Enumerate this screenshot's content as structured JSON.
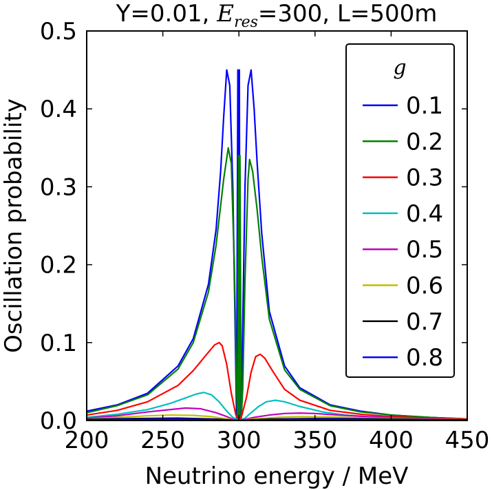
{
  "chart_data": {
    "type": "line",
    "title_prefix": "Y=0.01, ",
    "title_symbol": "E",
    "title_subscript": "res",
    "title_suffix": "=300, L=500m",
    "xlabel": "Neutrino energy / MeV",
    "ylabel": "Oscillation probability",
    "xlim": [
      200,
      450
    ],
    "ylim": [
      0.0,
      0.5
    ],
    "x_ticks": [
      200,
      250,
      300,
      350,
      400,
      450
    ],
    "x_tick_labels": [
      "200",
      "250",
      "300",
      "350",
      "400",
      "450"
    ],
    "y_ticks": [
      0.0,
      0.1,
      0.2,
      0.3,
      0.4,
      0.5
    ],
    "y_tick_labels": [
      "0.0",
      "0.1",
      "0.2",
      "0.3",
      "0.4",
      "0.5"
    ],
    "grid": false,
    "legend_title": "g",
    "legend_position": "top-right",
    "series": [
      {
        "name": "0.1",
        "color": "#0000ff",
        "x": [
          200,
          220,
          240,
          260,
          270,
          280,
          285,
          288,
          290,
          292,
          294,
          296,
          297.5,
          298.5,
          299.3,
          299.7,
          300,
          300.3,
          300.7,
          301.5,
          302.5,
          304,
          306,
          308,
          310,
          312,
          315,
          320,
          330,
          340,
          360,
          380,
          400,
          425,
          450
        ],
        "y": [
          0.012,
          0.02,
          0.035,
          0.07,
          0.105,
          0.175,
          0.245,
          0.32,
          0.39,
          0.45,
          0.43,
          0.3,
          0.12,
          0.0,
          0.45,
          0.0,
          0.0,
          0.45,
          0.0,
          0.0,
          0.12,
          0.3,
          0.43,
          0.45,
          0.4,
          0.33,
          0.24,
          0.14,
          0.07,
          0.042,
          0.02,
          0.012,
          0.007,
          0.004,
          0.002
        ]
      },
      {
        "name": "0.2",
        "color": "#008000",
        "x": [
          200,
          220,
          240,
          260,
          270,
          280,
          285,
          290,
          293,
          295,
          297,
          298.5,
          299.3,
          299.7,
          300,
          300.3,
          300.7,
          301.5,
          302.5,
          304,
          306,
          307,
          309,
          312,
          315,
          320,
          330,
          340,
          360,
          380,
          400,
          425,
          450
        ],
        "y": [
          0.01,
          0.019,
          0.033,
          0.066,
          0.1,
          0.165,
          0.225,
          0.31,
          0.35,
          0.33,
          0.2,
          0.04,
          0.0,
          0.34,
          0.0,
          0.0,
          0.34,
          0.0,
          0.04,
          0.18,
          0.31,
          0.335,
          0.32,
          0.27,
          0.21,
          0.13,
          0.065,
          0.04,
          0.019,
          0.011,
          0.007,
          0.004,
          0.002
        ]
      },
      {
        "name": "0.3",
        "color": "#ff0000",
        "x": [
          200,
          220,
          240,
          260,
          270,
          278,
          284,
          287,
          289,
          292,
          295,
          298,
          300,
          302,
          305,
          308,
          311,
          314,
          317,
          322,
          330,
          340,
          360,
          380,
          400,
          425,
          450
        ],
        "y": [
          0.007,
          0.013,
          0.024,
          0.045,
          0.064,
          0.083,
          0.097,
          0.1,
          0.096,
          0.072,
          0.035,
          0.007,
          0.0,
          0.007,
          0.03,
          0.062,
          0.082,
          0.085,
          0.08,
          0.064,
          0.04,
          0.026,
          0.013,
          0.008,
          0.005,
          0.003,
          0.002
        ]
      },
      {
        "name": "0.4",
        "color": "#00bfbf",
        "x": [
          200,
          220,
          240,
          255,
          265,
          272,
          277,
          282,
          287,
          292,
          296,
          300,
          304,
          308,
          313,
          318,
          324,
          330,
          340,
          355,
          370,
          390,
          410,
          430,
          450
        ],
        "y": [
          0.004,
          0.008,
          0.014,
          0.022,
          0.029,
          0.034,
          0.036,
          0.033,
          0.024,
          0.012,
          0.004,
          0.0,
          0.003,
          0.01,
          0.018,
          0.024,
          0.026,
          0.024,
          0.018,
          0.011,
          0.007,
          0.004,
          0.003,
          0.002,
          0.001
        ]
      },
      {
        "name": "0.5",
        "color": "#bf00bf",
        "x": [
          200,
          220,
          240,
          255,
          265,
          275,
          285,
          292,
          297,
          300,
          303,
          310,
          320,
          330,
          340,
          350,
          365,
          385,
          410,
          430,
          450
        ],
        "y": [
          0.003,
          0.006,
          0.011,
          0.014,
          0.016,
          0.015,
          0.01,
          0.005,
          0.001,
          0.0,
          0.001,
          0.004,
          0.007,
          0.009,
          0.0095,
          0.009,
          0.007,
          0.005,
          0.003,
          0.002,
          0.001
        ]
      },
      {
        "name": "0.6",
        "color": "#bfbf00",
        "x": [
          200,
          220,
          240,
          255,
          270,
          282,
          292,
          298,
          300,
          302,
          310,
          325,
          340,
          360,
          380,
          400,
          425,
          450
        ],
        "y": [
          0.002,
          0.004,
          0.006,
          0.007,
          0.0065,
          0.005,
          0.002,
          0.0003,
          0.0,
          0.0003,
          0.002,
          0.004,
          0.005,
          0.0045,
          0.0035,
          0.0025,
          0.0015,
          0.001
        ]
      },
      {
        "name": "0.7",
        "color": "#000000",
        "x": [
          200,
          230,
          260,
          285,
          298,
          300,
          302,
          320,
          350,
          390,
          420,
          450
        ],
        "y": [
          0.0015,
          0.0025,
          0.003,
          0.0018,
          0.0002,
          0.0,
          0.0002,
          0.0018,
          0.0025,
          0.002,
          0.0012,
          0.0008
        ]
      },
      {
        "name": "0.8",
        "color": "#0000ff",
        "x": [
          200,
          230,
          260,
          285,
          298,
          300,
          302,
          320,
          350,
          390,
          420,
          450
        ],
        "y": [
          0.001,
          0.0015,
          0.0018,
          0.001,
          0.0001,
          0.0,
          0.0001,
          0.001,
          0.0015,
          0.0012,
          0.0008,
          0.0005
        ]
      }
    ]
  }
}
